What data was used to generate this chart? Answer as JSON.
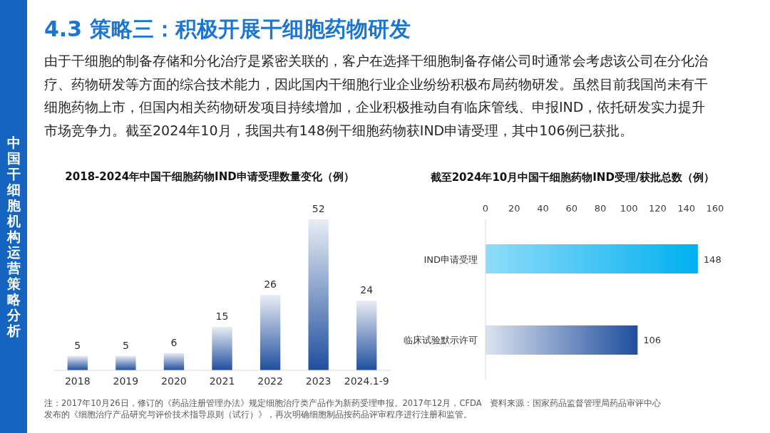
{
  "chart_data": [
    {
      "type": "other",
      "title": "4.3 策略三：积极开展干细胞药物研发",
      "subtitle": "由于干细胞的制备存储和分化治疗是紧密关联的，客户在选择干细胞制备存储公司时通常会考虑该公司在分化治疗、药物研发等方面的综合技术能力，因此国内干细胞行业企业纷纷积极布局药物研发。虽然目前我国尚未有干细胞药物上市，但国内相关药物研发项目持续增加，企业积极推动自有临床管线、申报IND，依托研发实力提升市场竞争力。截至2024年10月，我国共有148例干细胞药物获IND申请受理，其中106例已获批。",
      "annotations": [
        "中国干细胞机构运营策略分析"
      ]
    },
    {
      "type": "bar",
      "title": "2018-2024年中国干细胞药物IND申请受理数量变化（例）",
      "categories": [
        "2018",
        "2019",
        "2020",
        "2021",
        "2022",
        "2023",
        "2024.1-9"
      ],
      "values": [
        5,
        5,
        6,
        15,
        26,
        52,
        24
      ],
      "color": "#1f4e9e",
      "data_labels": true,
      "tick_labels": "x",
      "annotations": [
        "注：2017年10月26日，修订的《药品注册管理办法》规定细胞治疗类产品作为新药受理申报。2017年12月，CFDA发布的《细胞治疗产品研究与评价技术指导原则（试行）》，再次明确细胞制品按药品评审程序进行注册和监管。"
      ]
    },
    {
      "type": "bar",
      "orientation": "horizontal",
      "title": "截至2024年10月中国干细胞药物IND受理/获批总数（例）",
      "categories": [
        "IND申请受理",
        "临床试验默示许可"
      ],
      "values": [
        148,
        106
      ],
      "colors": [
        "#00b0f0",
        "#1f4e9e"
      ],
      "xlim": [
        0,
        160
      ],
      "xticks": [
        0,
        20,
        40,
        60,
        80,
        100,
        120,
        140,
        160
      ],
      "data_labels": true,
      "annotations": [
        "资料来源：国家药品监督管理局药品审评中心"
      ]
    }
  ]
}
